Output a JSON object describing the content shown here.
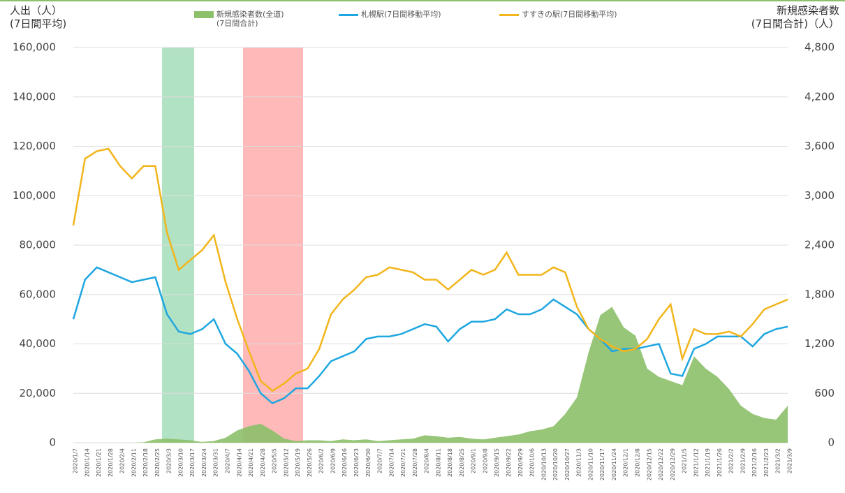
{
  "chart_data": {
    "type": "line",
    "y_label": "人出（人）\n(7日間平均)",
    "y2_label": "新規感染者数\n(7日間合計)（人）",
    "categories": [
      "2020/1/7",
      "2020/1/14",
      "2020/1/21",
      "2020/1/28",
      "2020/2/4",
      "2020/2/11",
      "2020/2/18",
      "2020/2/25",
      "2020/3/3",
      "2020/3/10",
      "2020/3/17",
      "2020/3/24",
      "2020/3/31",
      "2020/4/7",
      "2020/4/14",
      "2020/4/21",
      "2020/4/28",
      "2020/5/5",
      "2020/5/12",
      "2020/5/19",
      "2020/5/26",
      "2020/6/2",
      "2020/6/9",
      "2020/6/16",
      "2020/6/23",
      "2020/6/30",
      "2020/7/7",
      "2020/7/14",
      "2020/7/21",
      "2020/7/28",
      "2020/8/4",
      "2020/8/11",
      "2020/8/18",
      "2020/8/25",
      "2020/9/1",
      "2020/9/8",
      "2020/9/15",
      "2020/9/22",
      "2020/9/29",
      "2020/10/6",
      "2020/10/13",
      "2020/10/20",
      "2020/10/27",
      "2020/11/3",
      "2020/11/10",
      "2020/11/17",
      "2020/11/24",
      "2020/12/1",
      "2020/12/8",
      "2020/12/15",
      "2020/12/22",
      "2020/12/29",
      "2021/1/5",
      "2021/1/12",
      "2021/1/19",
      "2021/1/26",
      "2021/2/2",
      "2021/2/9",
      "2021/2/16",
      "2021/2/23",
      "2021/3/2",
      "2021/3/9"
    ],
    "series": [
      {
        "name": "新規感染者数(全道)\n(7日間合計)",
        "color": "#8cc06a",
        "axis": "y2",
        "kind": "area",
        "values": [
          0,
          0,
          0,
          0,
          0,
          0,
          5,
          40,
          50,
          40,
          30,
          10,
          20,
          60,
          150,
          200,
          230,
          150,
          50,
          20,
          30,
          30,
          20,
          40,
          30,
          40,
          20,
          30,
          40,
          50,
          90,
          80,
          60,
          70,
          50,
          40,
          60,
          80,
          100,
          140,
          160,
          200,
          350,
          550,
          1100,
          1550,
          1650,
          1400,
          1300,
          900,
          800,
          750,
          700,
          1050,
          900,
          800,
          650,
          450,
          350,
          300,
          280,
          450
        ]
      },
      {
        "name": "札幌駅(7日間移動平均)",
        "color": "#1ea6e0",
        "kind": "line",
        "values": [
          50000,
          66000,
          71000,
          69000,
          67000,
          65000,
          66000,
          67000,
          52000,
          45000,
          44000,
          46000,
          50000,
          40000,
          36000,
          29000,
          20000,
          16000,
          18000,
          22000,
          22000,
          27000,
          33000,
          35000,
          37000,
          42000,
          43000,
          43000,
          44000,
          46000,
          48000,
          47000,
          41000,
          46000,
          49000,
          49000,
          50000,
          54000,
          52000,
          52000,
          54000,
          58000,
          55000,
          52000,
          46000,
          42000,
          37000,
          38000,
          38000,
          39000,
          40000,
          28000,
          27000,
          38000,
          40000,
          43000,
          43000,
          43000,
          39000,
          44000,
          46000,
          47000
        ]
      },
      {
        "name": "すすきの駅(7日間移動平均)",
        "color": "#f2b51b",
        "kind": "line",
        "values": [
          88000,
          115000,
          118000,
          119000,
          112000,
          107000,
          112000,
          112000,
          85000,
          70000,
          74000,
          78000,
          84000,
          65000,
          50000,
          37000,
          25000,
          21000,
          24000,
          28000,
          30000,
          38000,
          52000,
          58000,
          62000,
          67000,
          68000,
          71000,
          70000,
          69000,
          66000,
          66000,
          62000,
          66000,
          70000,
          68000,
          70000,
          77000,
          68000,
          68000,
          68000,
          71000,
          69000,
          55000,
          46000,
          42000,
          39000,
          37000,
          38000,
          42000,
          50000,
          56000,
          34000,
          46000,
          44000,
          44000,
          45000,
          43000,
          48000,
          54000,
          56000,
          58000
        ]
      }
    ],
    "ylim": [
      0,
      160000
    ],
    "yticks": [
      0,
      {
        "value": 20000,
        "label": "20,000"
      },
      {
        "value": 40000,
        "label": "40,000"
      },
      {
        "value": 60000,
        "label": "60,000"
      },
      {
        "value": 80000,
        "label": "80,000"
      },
      {
        "value": 100000,
        "label": "100,000"
      },
      {
        "value": 120000,
        "label": "120,000"
      },
      {
        "value": 140000,
        "label": "140,000"
      },
      {
        "value": 160000,
        "label": "160,000"
      }
    ],
    "y2lim": [
      0,
      4800
    ],
    "y2ticks": [
      0,
      600,
      {
        "value": 1200,
        "label": "1,200"
      },
      {
        "value": 1800,
        "label": "1,800"
      },
      {
        "value": 2400,
        "label": "2,400"
      },
      {
        "value": 3000,
        "label": "3,000"
      },
      {
        "value": 3600,
        "label": "3,600"
      },
      {
        "value": 4200,
        "label": "4,200"
      },
      {
        "value": 4800,
        "label": "4,800"
      }
    ],
    "grid": true
  }
}
